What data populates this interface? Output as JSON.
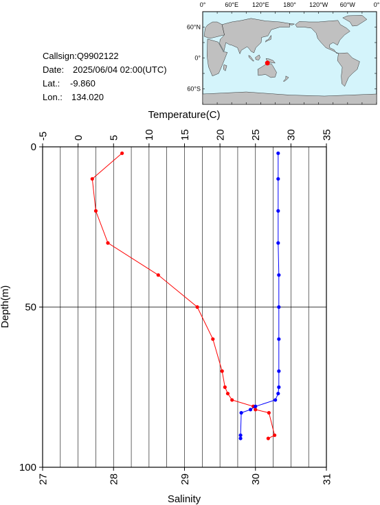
{
  "info": {
    "callsign_line": "Callsign:Q9902122",
    "date_label": "Date:",
    "date_value": "2025/06/04 02:00(UTC)",
    "lat_label": "Lat.:",
    "lat_value": "-9.860",
    "lon_label": "Lon.:",
    "lon_value": "134.020"
  },
  "map": {
    "top_labels": [
      "0°",
      "60°E",
      "120°E",
      "180°",
      "120°W",
      "60°W",
      "0°"
    ],
    "left_labels": [
      "60°N",
      "0°",
      "60°S"
    ],
    "ocean_color": "#d4f4fb",
    "land_color": "#c0c0c0",
    "marker_color": "#ff0000",
    "marker": {
      "lon": 134.02,
      "lat": -9.86
    }
  },
  "chart_data": {
    "type": "line",
    "ylabel": "Depth(m)",
    "ylim": [
      100,
      0
    ],
    "yticks": [
      "0",
      "50",
      "100"
    ],
    "x_top": {
      "label": "Temperature(C)",
      "lim": [
        -5,
        35
      ],
      "ticks": [
        "-5",
        "0",
        "5",
        "10",
        "15",
        "20",
        "25",
        "30",
        "35"
      ]
    },
    "x_bottom": {
      "label": "Salinity",
      "lim": [
        27,
        31
      ],
      "ticks": [
        "27",
        "28",
        "29",
        "30",
        "31"
      ]
    },
    "grid": true,
    "series": [
      {
        "axis": "top",
        "color": "#ff0000",
        "points": [
          {
            "x": 6.2,
            "y": 2
          },
          {
            "x": 2.0,
            "y": 10
          },
          {
            "x": 2.5,
            "y": 20
          },
          {
            "x": 4.2,
            "y": 30
          },
          {
            "x": 11.3,
            "y": 40
          },
          {
            "x": 16.8,
            "y": 50
          },
          {
            "x": 19.0,
            "y": 60
          },
          {
            "x": 20.3,
            "y": 70
          },
          {
            "x": 20.7,
            "y": 75
          },
          {
            "x": 21.1,
            "y": 77
          },
          {
            "x": 21.7,
            "y": 79
          },
          {
            "x": 24.7,
            "y": 81
          },
          {
            "x": 25.0,
            "y": 82
          },
          {
            "x": 26.9,
            "y": 83
          },
          {
            "x": 27.7,
            "y": 90
          },
          {
            "x": 26.8,
            "y": 91
          }
        ]
      },
      {
        "axis": "bottom",
        "color": "#0000ff",
        "points": [
          {
            "x": 30.32,
            "y": 2
          },
          {
            "x": 30.32,
            "y": 10
          },
          {
            "x": 30.32,
            "y": 20
          },
          {
            "x": 30.32,
            "y": 30
          },
          {
            "x": 30.33,
            "y": 40
          },
          {
            "x": 30.33,
            "y": 50
          },
          {
            "x": 30.33,
            "y": 60
          },
          {
            "x": 30.33,
            "y": 70
          },
          {
            "x": 30.33,
            "y": 75
          },
          {
            "x": 30.32,
            "y": 77
          },
          {
            "x": 30.28,
            "y": 79
          },
          {
            "x": 30.0,
            "y": 81
          },
          {
            "x": 29.93,
            "y": 82
          },
          {
            "x": 29.8,
            "y": 83
          },
          {
            "x": 29.79,
            "y": 90
          },
          {
            "x": 29.79,
            "y": 91
          }
        ]
      }
    ]
  }
}
